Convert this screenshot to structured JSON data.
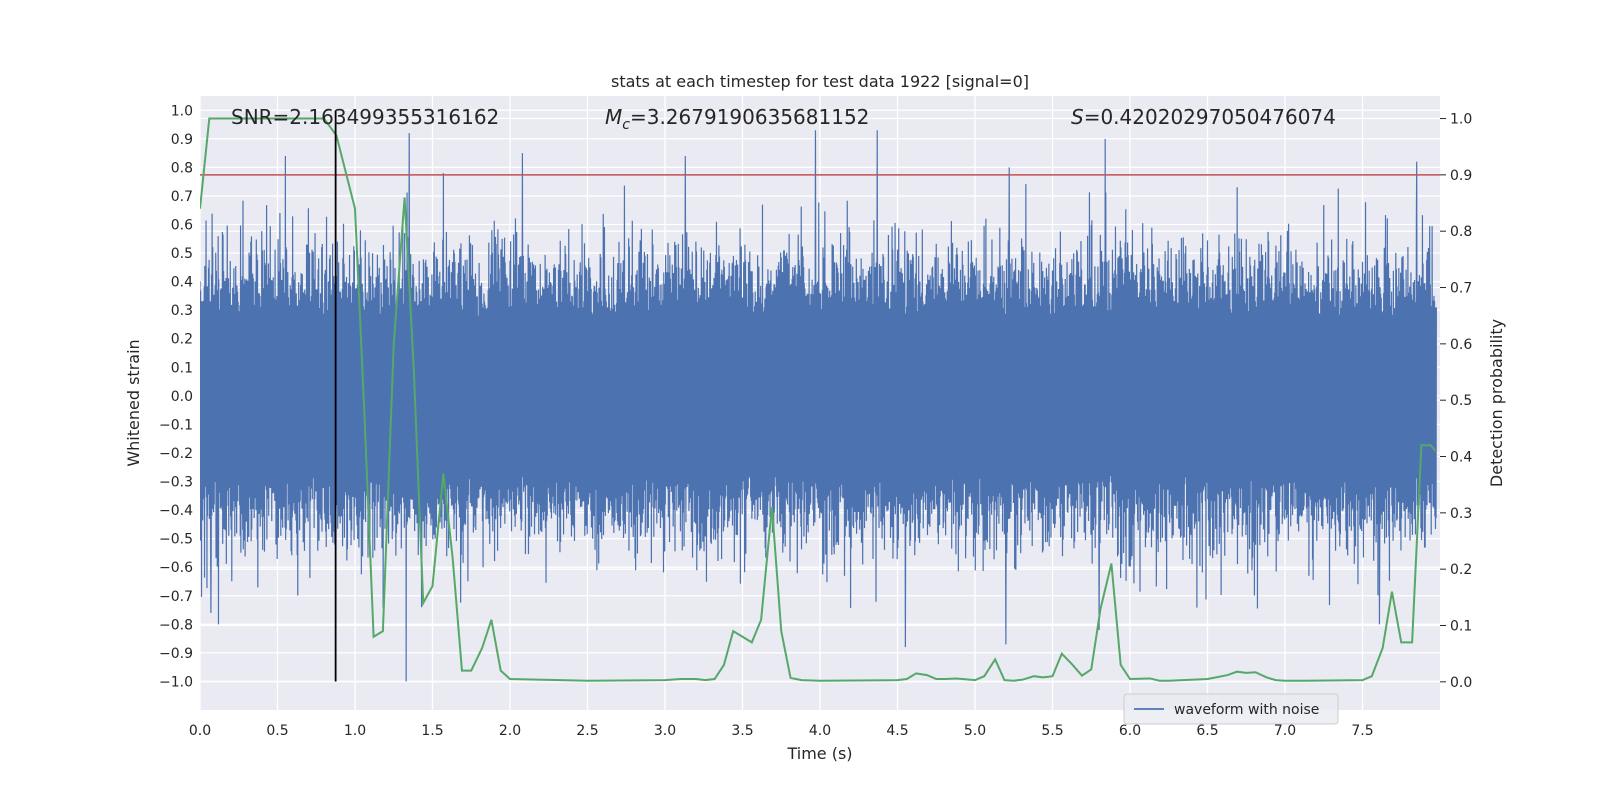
{
  "chart_data": {
    "type": "line",
    "title": "stats at each timestep for test data 1922 [signal=0]",
    "xlabel": "Time (s)",
    "ylabel_left": "Whitened strain",
    "ylabel_right": "Detection probability",
    "xlim": [
      0.0,
      8.0
    ],
    "ylim_left": [
      -1.1,
      1.05
    ],
    "ylim_right": [
      -0.05,
      1.04
    ],
    "grid": true,
    "x_ticks": [
      "0.0",
      "0.5",
      "1.0",
      "1.5",
      "2.0",
      "2.5",
      "3.0",
      "3.5",
      "4.0",
      "4.5",
      "5.0",
      "5.5",
      "6.0",
      "6.5",
      "7.0",
      "7.5"
    ],
    "x_tick_values": [
      0.0,
      0.5,
      1.0,
      1.5,
      2.0,
      2.5,
      3.0,
      3.5,
      4.0,
      4.5,
      5.0,
      5.5,
      6.0,
      6.5,
      7.0,
      7.5
    ],
    "y_left_ticks": [
      "1.0",
      "0.9",
      "0.8",
      "0.7",
      "0.6",
      "0.5",
      "0.4",
      "0.3",
      "0.2",
      "0.1",
      "0.0",
      "−0.1",
      "−0.2",
      "−0.3",
      "−0.4",
      "−0.5",
      "−0.6",
      "−0.7",
      "−0.8",
      "−0.9",
      "−1.0"
    ],
    "y_left_tick_values": [
      1.0,
      0.9,
      0.8,
      0.7,
      0.6,
      0.5,
      0.4,
      0.3,
      0.2,
      0.1,
      0.0,
      -0.1,
      -0.2,
      -0.3,
      -0.4,
      -0.5,
      -0.6,
      -0.7,
      -0.8,
      -0.9,
      -1.0
    ],
    "y_right_ticks": [
      "1.0",
      "0.9",
      "0.8",
      "0.7",
      "0.6",
      "0.5",
      "0.4",
      "0.3",
      "0.2",
      "0.1",
      "0.0"
    ],
    "y_right_tick_values": [
      1.0,
      0.9,
      0.8,
      0.7,
      0.6,
      0.5,
      0.4,
      0.3,
      0.2,
      0.1,
      0.0
    ],
    "annotations": {
      "snr": "SNR=2.163499355316162",
      "mc_symbol": "M",
      "mc_sub": "c",
      "mc_value": "=3.2679190635681152",
      "s_symbol": "S",
      "s_value": "=0.42020297050476074"
    },
    "legend": {
      "label": "waveform with noise",
      "placement": "lower-right"
    },
    "threshold": {
      "name": "threshold",
      "value": 0.9,
      "axis": "right",
      "color": "#c44e52"
    },
    "marker_time": 0.875,
    "marker_ymin": -1.0,
    "marker_ymax": 1.0,
    "waveform": {
      "name": "waveform with noise",
      "axis": "left",
      "color": "#4c72b0",
      "fs": 512,
      "duration": 7.98,
      "envelope": 0.55,
      "spikes": [
        [
          0.55,
          0.84
        ],
        [
          1.35,
          0.92
        ],
        [
          1.57,
          0.78
        ],
        [
          2.08,
          0.85
        ],
        [
          3.13,
          0.84
        ],
        [
          3.97,
          0.93
        ],
        [
          4.37,
          0.93
        ],
        [
          5.22,
          0.8
        ],
        [
          5.84,
          0.9
        ],
        [
          7.85,
          0.82
        ],
        [
          1.33,
          -1.0
        ],
        [
          1.43,
          -0.74
        ],
        [
          4.55,
          -0.88
        ],
        [
          5.2,
          -0.87
        ],
        [
          5.8,
          -0.82
        ],
        [
          7.61,
          -0.8
        ],
        [
          0.07,
          -0.76
        ],
        [
          0.12,
          -0.8
        ]
      ]
    },
    "probability": {
      "name": "detection probability",
      "axis": "right",
      "color": "#55a868",
      "x": [
        0.0,
        0.06,
        0.2,
        0.5,
        0.8,
        0.88,
        1.0,
        1.06,
        1.12,
        1.18,
        1.25,
        1.32,
        1.38,
        1.44,
        1.5,
        1.57,
        1.63,
        1.69,
        1.75,
        1.82,
        1.88,
        1.94,
        2.0,
        2.5,
        3.0,
        3.1,
        3.2,
        3.26,
        3.32,
        3.38,
        3.44,
        3.5,
        3.56,
        3.62,
        3.69,
        3.75,
        3.81,
        3.88,
        4.0,
        4.5,
        4.56,
        4.62,
        4.69,
        4.75,
        4.81,
        4.88,
        5.0,
        5.06,
        5.13,
        5.19,
        5.25,
        5.31,
        5.38,
        5.44,
        5.5,
        5.56,
        5.63,
        5.69,
        5.75,
        5.81,
        5.88,
        5.94,
        6.0,
        6.13,
        6.19,
        6.25,
        6.5,
        6.63,
        6.69,
        6.75,
        6.81,
        6.88,
        6.94,
        7.0,
        7.06,
        7.13,
        7.5,
        7.56,
        7.63,
        7.69,
        7.75,
        7.82,
        7.88,
        7.94,
        7.97
      ],
      "y": [
        0.84,
        1.0,
        1.0,
        1.0,
        1.0,
        0.97,
        0.84,
        0.48,
        0.08,
        0.09,
        0.6,
        0.86,
        0.55,
        0.14,
        0.17,
        0.37,
        0.22,
        0.02,
        0.02,
        0.06,
        0.11,
        0.02,
        0.005,
        0.002,
        0.003,
        0.005,
        0.005,
        0.003,
        0.005,
        0.03,
        0.09,
        0.08,
        0.07,
        0.11,
        0.31,
        0.09,
        0.007,
        0.003,
        0.002,
        0.003,
        0.005,
        0.015,
        0.012,
        0.005,
        0.005,
        0.006,
        0.003,
        0.01,
        0.04,
        0.003,
        0.002,
        0.004,
        0.01,
        0.008,
        0.01,
        0.05,
        0.03,
        0.011,
        0.022,
        0.13,
        0.21,
        0.03,
        0.005,
        0.006,
        0.002,
        0.002,
        0.005,
        0.012,
        0.018,
        0.016,
        0.017,
        0.008,
        0.003,
        0.002,
        0.002,
        0.002,
        0.003,
        0.01,
        0.06,
        0.16,
        0.07,
        0.07,
        0.42,
        0.42,
        0.41
      ]
    }
  }
}
